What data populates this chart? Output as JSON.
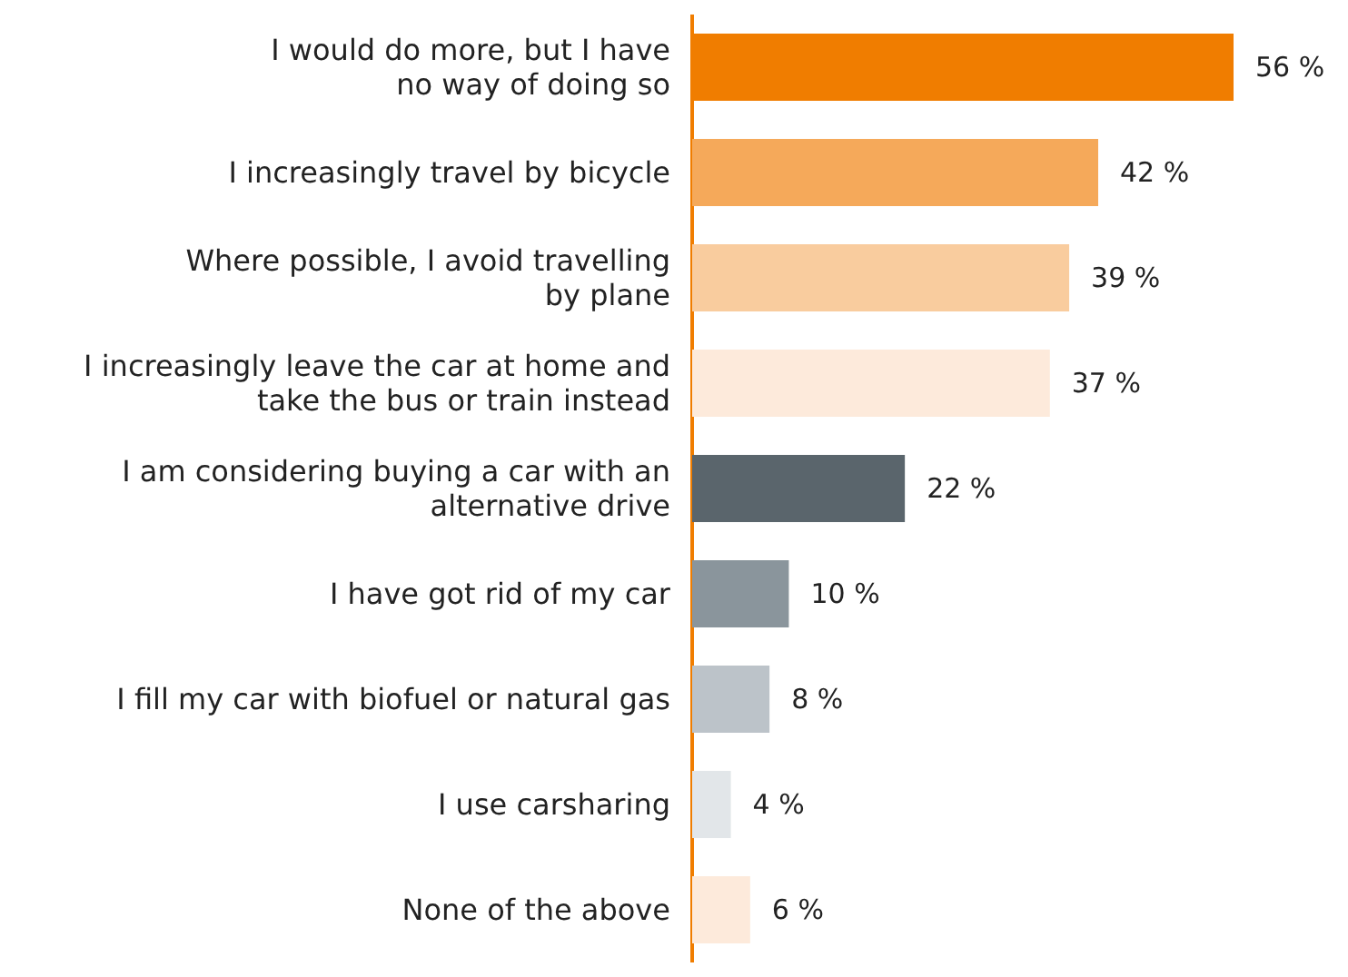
{
  "chart_data": {
    "type": "bar",
    "orientation": "horizontal",
    "categories": [
      "I would do more, but I have\nno way of doing so",
      "I increasingly travel by bicycle",
      "Where possible, I avoid travelling\nby plane",
      "I increasingly leave the car at home and\ntake the bus or train instead",
      "I am considering buying a car with an\nalternative drive",
      "I have got rid of my car",
      "I fill my car with biofuel or natural gas",
      "I use carsharing",
      "None of the above"
    ],
    "values": [
      56,
      42,
      39,
      37,
      22,
      10,
      8,
      4,
      6
    ],
    "value_labels": [
      "56 %",
      "42 %",
      "39 %",
      "37 %",
      "22 %",
      "10 %",
      "8 %",
      "4 %",
      "6 %"
    ],
    "colors": [
      "#f07d00",
      "#f5a95a",
      "#f9cc9e",
      "#fdeadb",
      "#5a656c",
      "#8a959c",
      "#bcc3c9",
      "#e2e6e9",
      "#fdeadb"
    ]
  }
}
